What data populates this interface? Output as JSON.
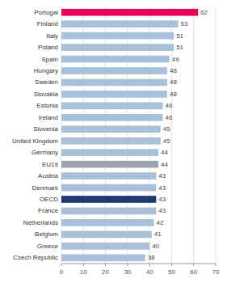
{
  "chart_data": {
    "type": "bar",
    "orientation": "horizontal",
    "categories": [
      "Czech Republic",
      "Greece",
      "Belgium",
      "Netherlands",
      "France",
      "OECD",
      "Denmark",
      "Austria",
      "EU19",
      "Germany",
      "United Kingdom",
      "Slovenia",
      "Ireland",
      "Estonia",
      "Slovakia",
      "Sweden",
      "Hungary",
      "Spain",
      "Poland",
      "Italy",
      "Finland",
      "Portugal"
    ],
    "values": [
      38,
      40,
      41,
      42,
      43,
      43,
      43,
      43,
      44,
      44,
      45,
      45,
      46,
      46,
      48,
      48,
      48,
      49,
      51,
      51,
      53,
      62
    ],
    "colors": [
      "#a8c0d8",
      "#a8c0d8",
      "#a8c0d8",
      "#a8c0d8",
      "#a8c0d8",
      "#1f3a6e",
      "#a8c0d8",
      "#a8c0d8",
      "#9aa5b0",
      "#a8c0d8",
      "#a8c0d8",
      "#a8c0d8",
      "#a8c0d8",
      "#a8c0d8",
      "#a8c0d8",
      "#a8c0d8",
      "#a8c0d8",
      "#a8c0d8",
      "#a8c0d8",
      "#a8c0d8",
      "#a8c0d8",
      "#e8005a"
    ],
    "xlim": [
      0,
      70
    ],
    "xticks": [
      0,
      10,
      20,
      30,
      40,
      50,
      60,
      70
    ],
    "grid": true,
    "data_labels": true
  }
}
